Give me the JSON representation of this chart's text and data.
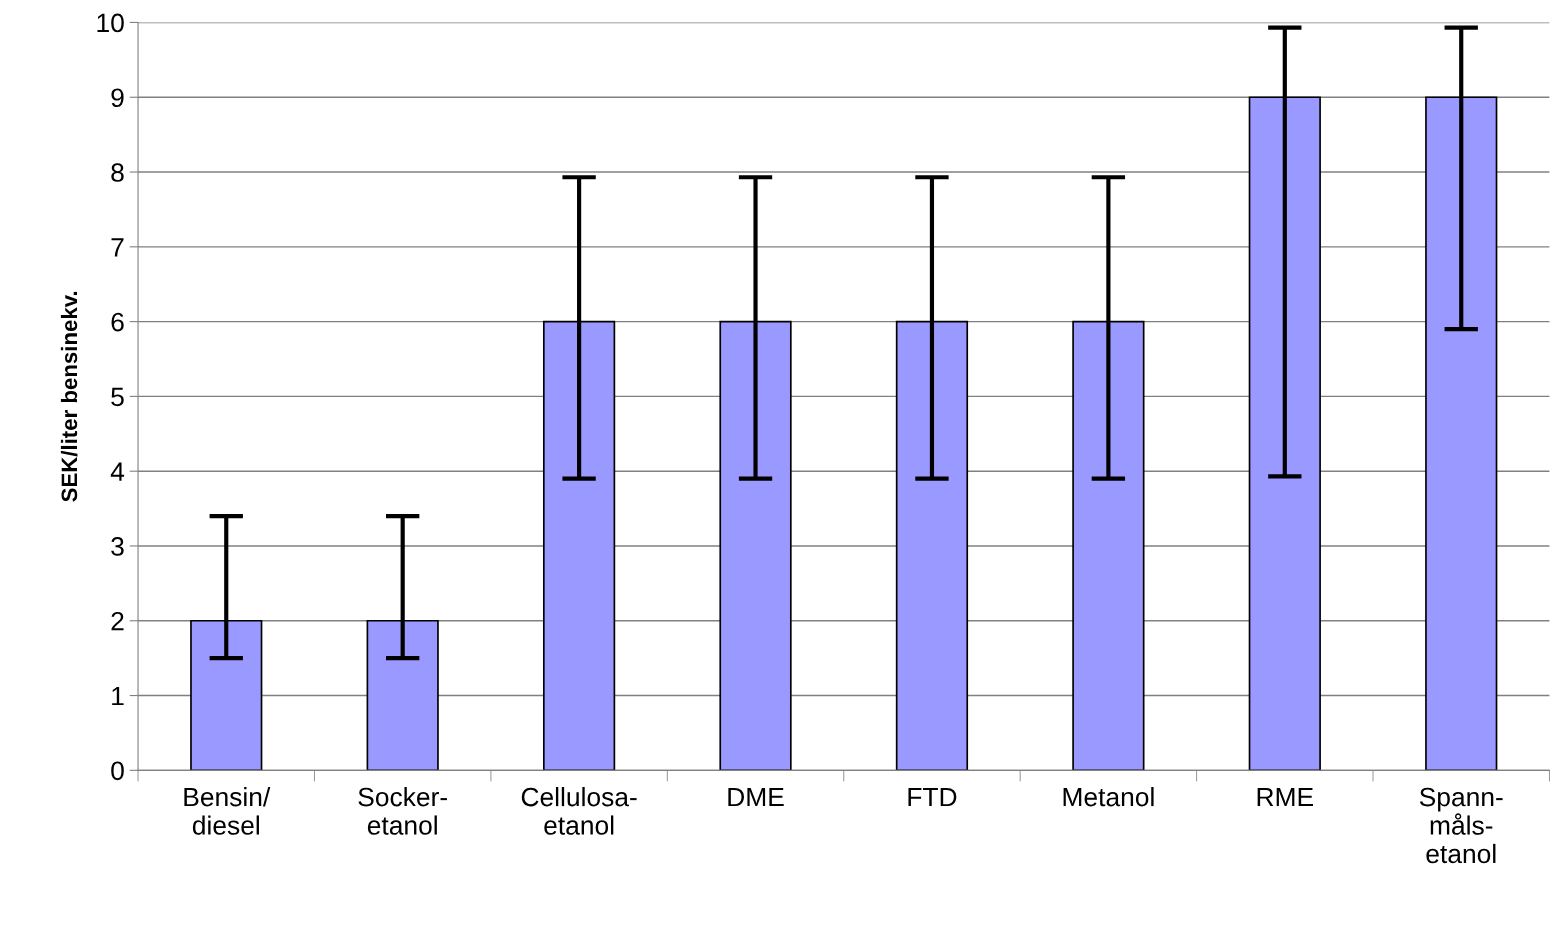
{
  "chart_data": {
    "type": "bar",
    "ylabel": "SEK/liter bensinekv.",
    "categories": [
      "Bensin/\ndiesel",
      "Socker-\netanol",
      "Cellulosa-\netanol",
      "DME",
      "FTD",
      "Metanol",
      "RME",
      "Spann-\nmåls-\netanol"
    ],
    "values": [
      2,
      2,
      6,
      6,
      6,
      6,
      9,
      9
    ],
    "errors": [
      [
        1.5,
        3.4
      ],
      [
        1.5,
        3.4
      ],
      [
        3.9,
        7.93
      ],
      [
        3.9,
        7.93
      ],
      [
        3.9,
        7.93
      ],
      [
        3.9,
        7.93
      ],
      [
        3.93,
        9.93
      ],
      [
        5.9,
        9.93
      ]
    ],
    "color": "#9999ff",
    "ylim": [
      0,
      10
    ],
    "yticks": [
      0,
      1,
      2,
      3,
      4,
      5,
      6,
      7,
      8,
      9,
      10
    ],
    "grid": "y"
  }
}
